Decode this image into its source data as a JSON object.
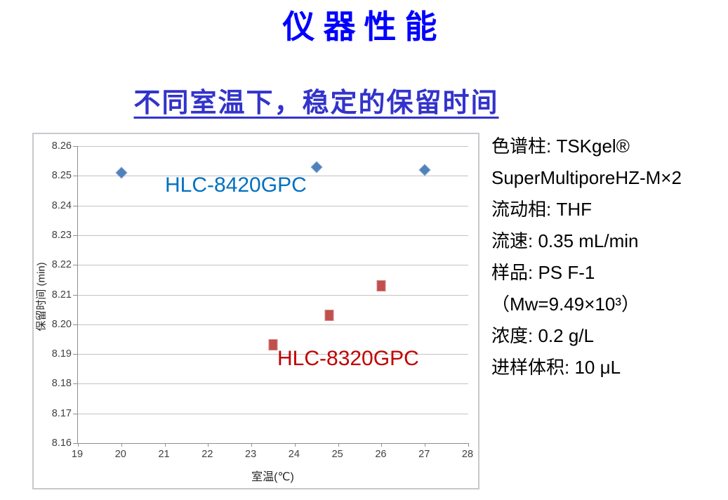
{
  "title": "仪器性能",
  "subtitle": "不同室温下，稳定的保留时间",
  "colors": {
    "title": "#0000ff",
    "subtitle": "#3333cc",
    "series1_marker": "#4f81bd",
    "series2_marker": "#c0504d",
    "series1_label": "#0070c0",
    "series2_label": "#c00000",
    "gridline": "#c3c3c3"
  },
  "info_panel": {
    "lines": [
      "色谱柱: TSKgel®",
      "SuperMultiporeHZ-M×2",
      "流动相: THF",
      "流速: 0.35 mL/min",
      "样品: PS F-1",
      "（Mw=9.49×10³）",
      "浓度: 0.2 g/L",
      "进样体积: 10 μL"
    ]
  },
  "chart_data": {
    "type": "scatter",
    "title": "",
    "xlabel": "室温(℃)",
    "ylabel": "保留时间 (min)",
    "xlim": [
      19,
      28
    ],
    "ylim": [
      8.16,
      8.26
    ],
    "x_ticks": [
      19,
      20,
      21,
      22,
      23,
      24,
      25,
      26,
      27,
      28
    ],
    "y_ticks": [
      8.16,
      8.17,
      8.18,
      8.19,
      8.2,
      8.21,
      8.22,
      8.23,
      8.24,
      8.25,
      8.26
    ],
    "grid": "horizontal",
    "legend_position": "inline-text-labels",
    "series": [
      {
        "name": "HLC-8420GPC",
        "marker": "diamond",
        "color": "#4f81bd",
        "label_color": "#0070c0",
        "points": [
          [
            20,
            8.251
          ],
          [
            24.5,
            8.253
          ],
          [
            27,
            8.252
          ]
        ]
      },
      {
        "name": "HLC-8320GPC",
        "marker": "square",
        "color": "#c0504d",
        "label_color": "#c00000",
        "points": [
          [
            23.5,
            8.193
          ],
          [
            24.8,
            8.203
          ],
          [
            26,
            8.213
          ]
        ]
      }
    ]
  }
}
